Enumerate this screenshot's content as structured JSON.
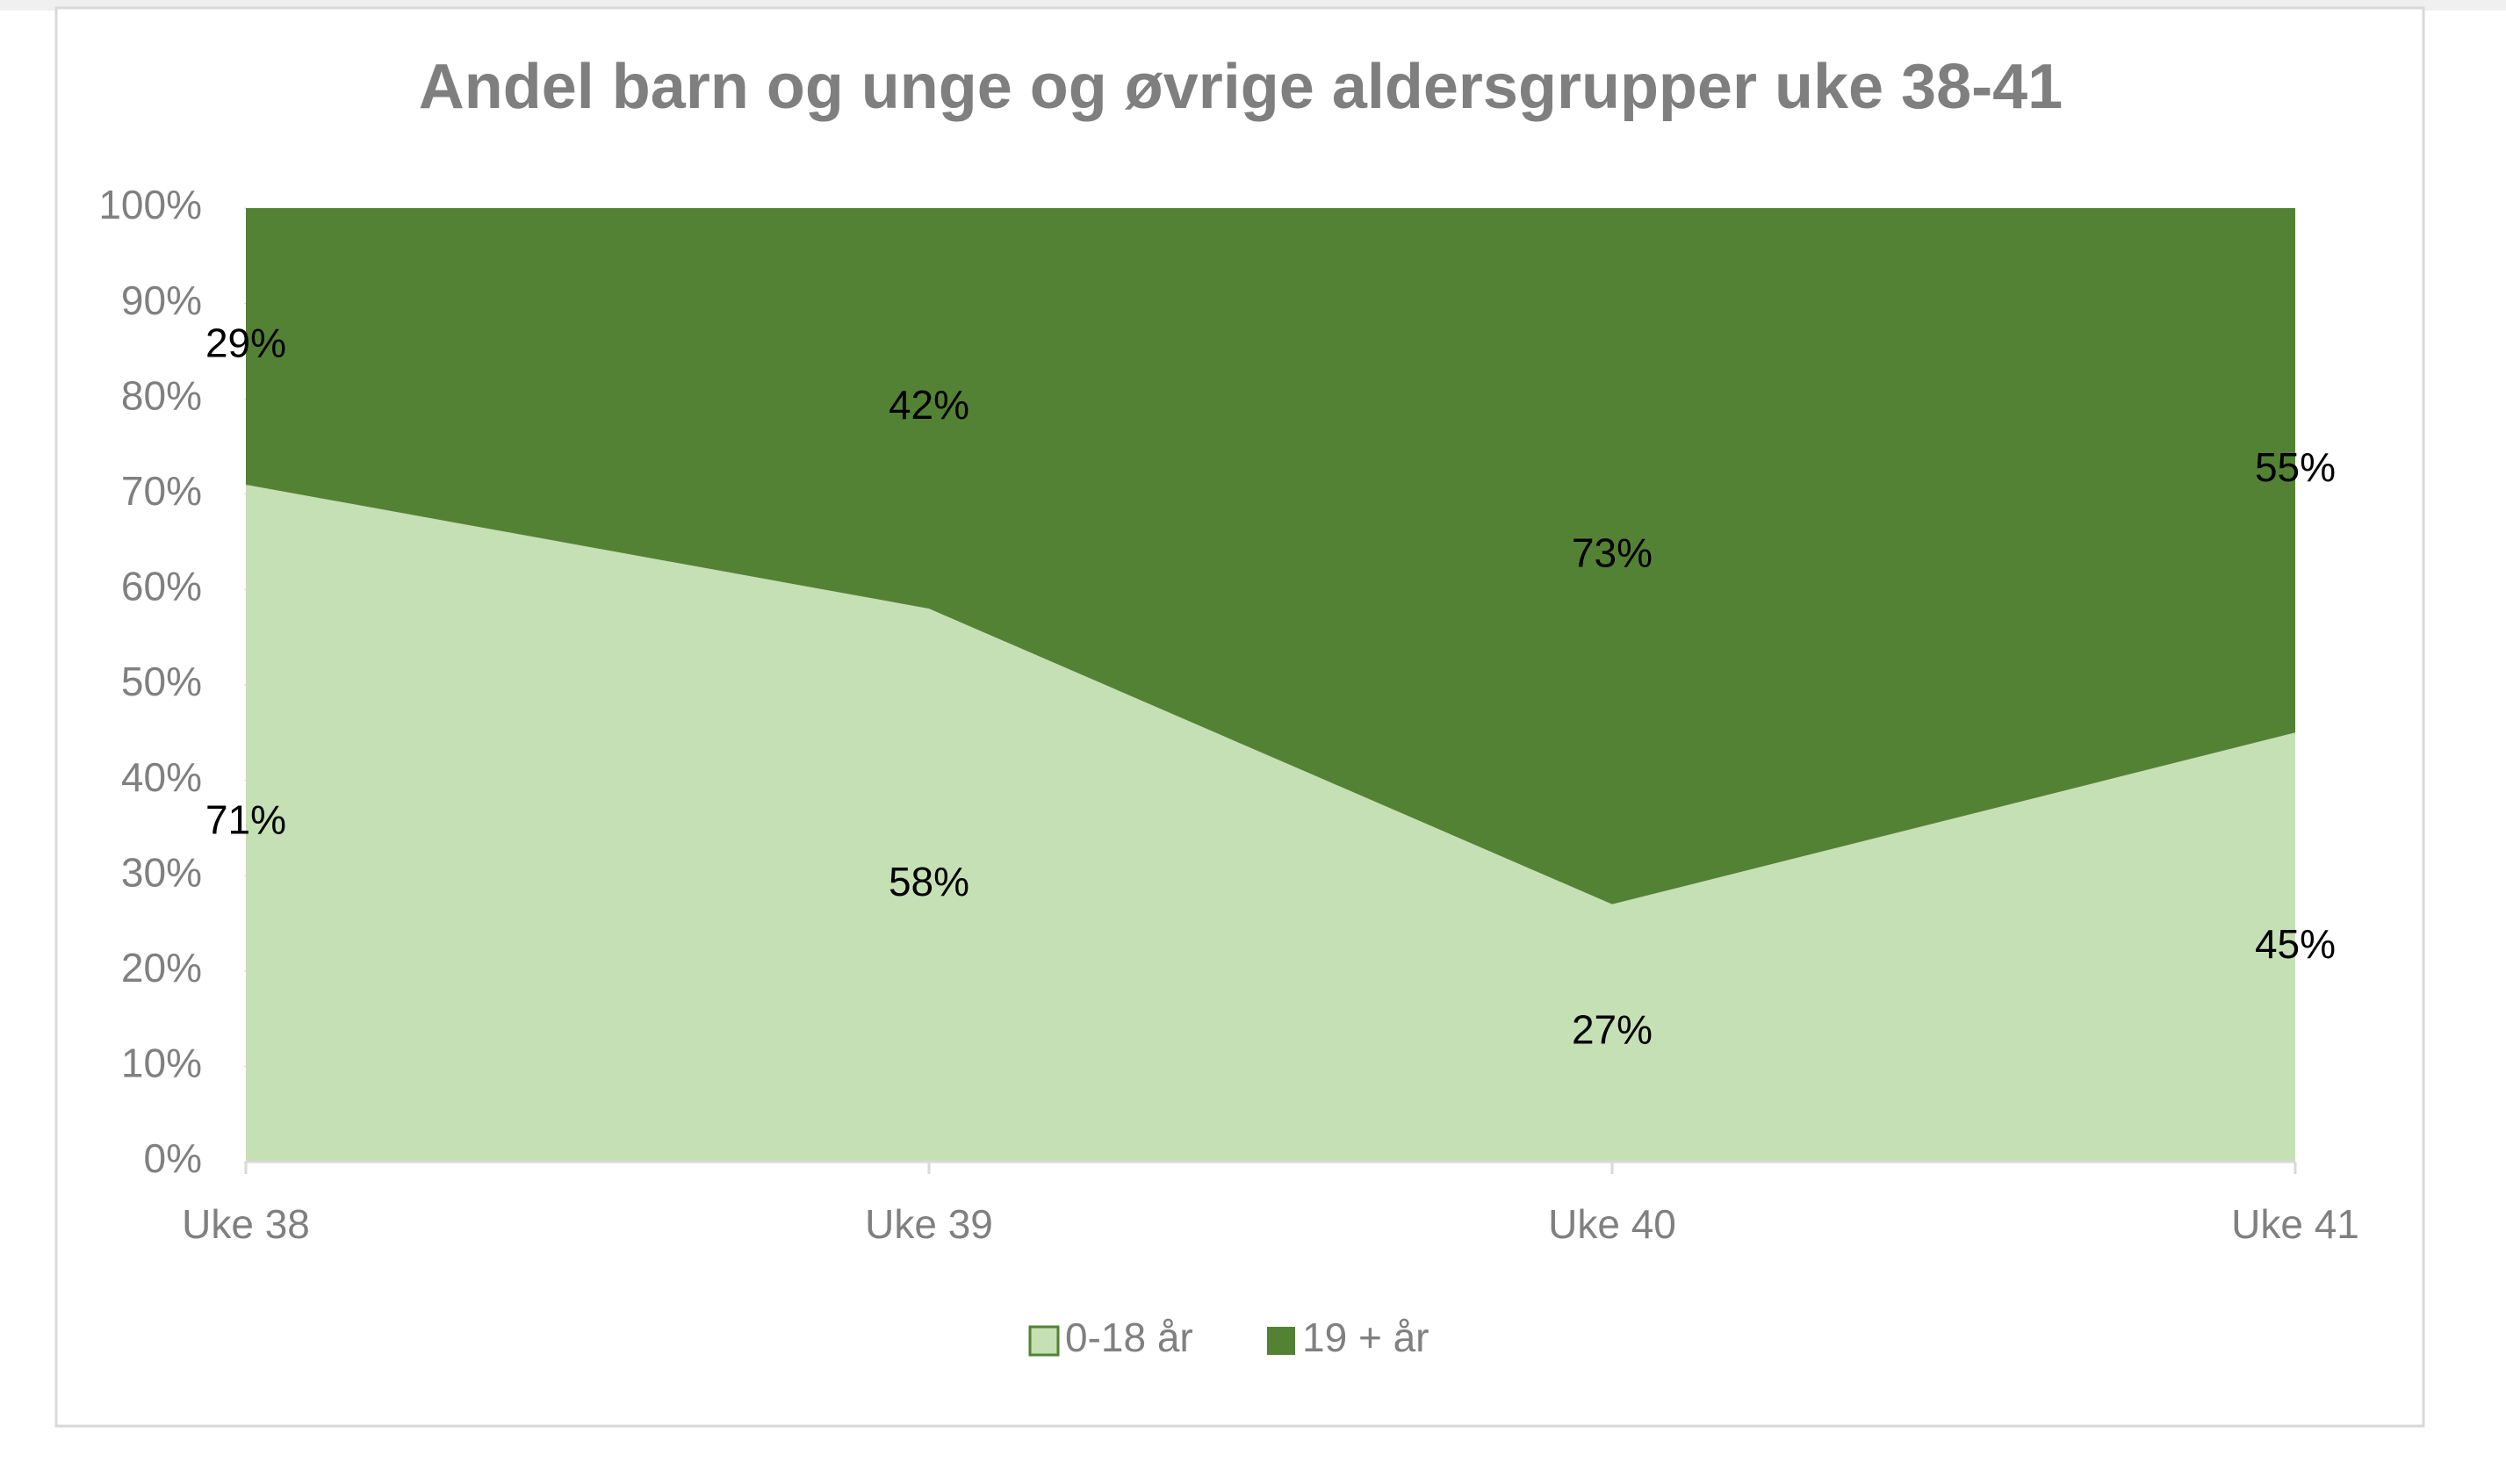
{
  "chart_data": {
    "type": "stacked_area",
    "title": "Andel barn og unge og øvrige aldersgrupper uke 38-41",
    "categories": [
      "Uke 38",
      "Uke 39",
      "Uke 40",
      "Uke 41"
    ],
    "series": [
      {
        "name": "0-18 år",
        "color": "#c5e0b4",
        "values": [
          71,
          58,
          27,
          45
        ],
        "value_labels": [
          "71%",
          "58%",
          "27%",
          "45%"
        ]
      },
      {
        "name": "19 + år",
        "color": "#548235",
        "values": [
          29,
          42,
          73,
          55
        ],
        "value_labels": [
          "29%",
          "42%",
          "73%",
          "55%"
        ]
      }
    ],
    "ylim": [
      0,
      100
    ],
    "yticks": [
      {
        "value": 0,
        "label": "0%"
      },
      {
        "value": 10,
        "label": "10%"
      },
      {
        "value": 20,
        "label": "20%"
      },
      {
        "value": 30,
        "label": "30%"
      },
      {
        "value": 40,
        "label": "40%"
      },
      {
        "value": 50,
        "label": "50%"
      },
      {
        "value": 60,
        "label": "60%"
      },
      {
        "value": 70,
        "label": "70%"
      },
      {
        "value": 80,
        "label": "80%"
      },
      {
        "value": 90,
        "label": "90%"
      },
      {
        "value": 100,
        "label": "100%"
      }
    ],
    "legend": "bottom"
  }
}
